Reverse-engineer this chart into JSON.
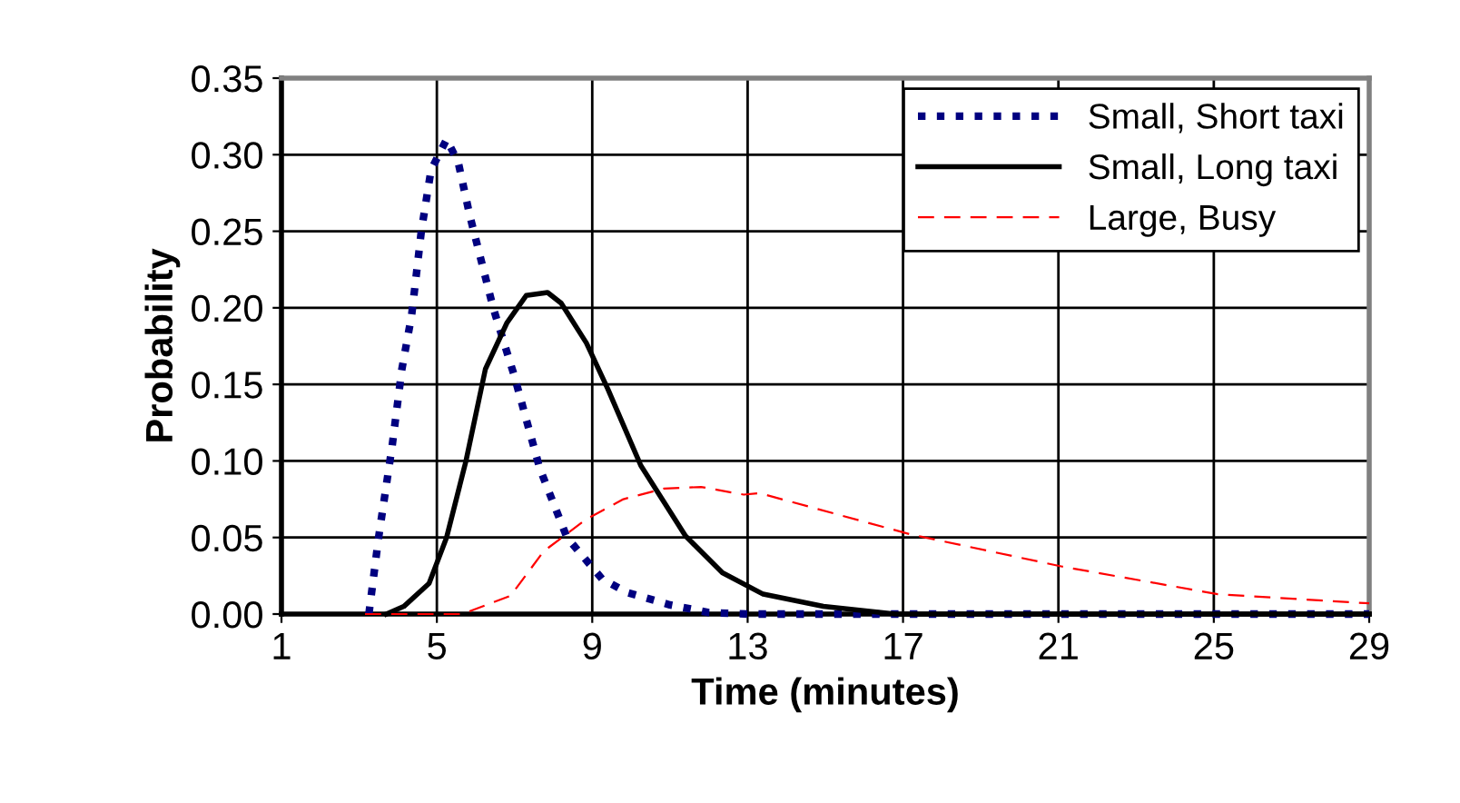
{
  "chart_data": {
    "type": "line",
    "xlabel": "Time (minutes)",
    "ylabel": "Probability",
    "xlim": [
      1,
      29
    ],
    "xticks": [
      1,
      5,
      9,
      13,
      17,
      21,
      25,
      29
    ],
    "ylim": [
      0,
      0.35
    ],
    "yticks": [
      {
        "value": 0,
        "label": "0.00"
      },
      0.05,
      {
        "value": 0.1,
        "label": "0.10"
      },
      0.15,
      {
        "value": 0.2,
        "label": "0.20"
      },
      0.25,
      {
        "value": 0.3,
        "label": "0.30"
      },
      0.35
    ],
    "grid": true,
    "legend": "top right",
    "marker": "none",
    "series": [
      {
        "name": "Small, Short taxi",
        "color": "#000080",
        "line_style": "dotted",
        "x": [
          3.25,
          3.5,
          3.85,
          4.1,
          4.35,
          4.6,
          4.85,
          5.25,
          5.55,
          5.85,
          6.45,
          7,
          7.65,
          8.35,
          9.25,
          9.9,
          11,
          12,
          13,
          15,
          17,
          21,
          25,
          29
        ],
        "values": [
          0,
          0.05,
          0.11,
          0.16,
          0.195,
          0.25,
          0.29,
          0.31,
          0.295,
          0.26,
          0.2,
          0.155,
          0.095,
          0.05,
          0.023,
          0.014,
          0.006,
          0.001,
          0,
          0,
          0,
          0,
          0,
          0
        ]
      },
      {
        "name": "Small, Long taxi",
        "color": "#000000",
        "line_style": "solid",
        "x": [
          3.7,
          4.15,
          4.8,
          5.25,
          5.75,
          6.25,
          6.8,
          7.3,
          7.85,
          8.2,
          8.85,
          9.4,
          10.25,
          11.4,
          12.35,
          13.4,
          14.95,
          16.8,
          21,
          25,
          29
        ],
        "values": [
          0,
          0.005,
          0.02,
          0.05,
          0.1,
          0.16,
          0.19,
          0.208,
          0.21,
          0.203,
          0.177,
          0.147,
          0.097,
          0.051,
          0.027,
          0.013,
          0.005,
          0,
          0,
          0,
          0
        ]
      },
      {
        "name": "Large, Busy",
        "color": "#ff0000",
        "line_style": "dashed",
        "x": [
          3.15,
          5.65,
          6.9,
          7.75,
          8.85,
          9.8,
          10.85,
          11.8,
          12.9,
          13.3,
          17.2,
          21.1,
          25.1,
          29
        ],
        "values": [
          0,
          0,
          0.012,
          0.041,
          0.062,
          0.075,
          0.082,
          0.083,
          0.078,
          0.079,
          0.052,
          0.031,
          0.013,
          0.007
        ]
      }
    ]
  }
}
